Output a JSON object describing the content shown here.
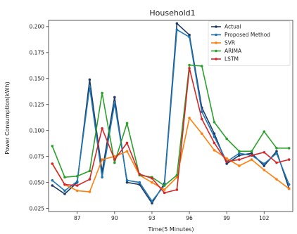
{
  "chart_data": {
    "type": "line",
    "title": "Household1",
    "xlabel": "Time(5 Minutes)",
    "ylabel": "Power Consumption(kWh)",
    "xlim": [
      84.7,
      104.3
    ],
    "ylim": [
      0.022,
      0.206
    ],
    "x_ticks": [
      87,
      90,
      93,
      96,
      99,
      102
    ],
    "y_ticks": [
      0.025,
      0.05,
      0.075,
      0.1,
      0.125,
      0.15,
      0.175,
      0.2
    ],
    "x_tick_labels": [
      "87",
      "90",
      "93",
      "96",
      "99",
      "102"
    ],
    "y_tick_labels": [
      "0.025",
      "0.050",
      "0.075",
      "0.100",
      "0.125",
      "0.150",
      "0.175",
      "0.200"
    ],
    "legend_position": "top-right",
    "x": [
      85,
      86,
      87,
      88,
      89,
      90,
      91,
      92,
      93,
      94,
      95,
      96,
      97,
      98,
      99,
      100,
      101,
      102,
      103,
      104
    ],
    "series": [
      {
        "name": "Actual",
        "color": "#1f3b63",
        "values": [
          0.047,
          0.039,
          0.05,
          0.149,
          0.06,
          0.132,
          0.05,
          0.048,
          0.03,
          0.049,
          0.203,
          0.192,
          0.122,
          0.097,
          0.068,
          0.076,
          0.078,
          0.066,
          0.08,
          0.044
        ]
      },
      {
        "name": "Proposed Method",
        "color": "#1f77b4",
        "values": [
          0.052,
          0.042,
          0.051,
          0.142,
          0.055,
          0.126,
          0.052,
          0.05,
          0.032,
          0.047,
          0.197,
          0.19,
          0.118,
          0.094,
          0.07,
          0.078,
          0.076,
          0.068,
          0.078,
          0.048
        ]
      },
      {
        "name": "SVR",
        "color": "#ff7f0e",
        "values": [
          0.068,
          0.048,
          0.042,
          0.041,
          0.072,
          0.075,
          0.08,
          0.057,
          0.05,
          0.043,
          0.055,
          0.112,
          0.097,
          0.081,
          0.073,
          0.066,
          0.072,
          0.062,
          0.053,
          0.044
        ]
      },
      {
        "name": "ARIMA",
        "color": "#2ca02c",
        "values": [
          0.085,
          0.055,
          0.056,
          0.061,
          0.136,
          0.069,
          0.107,
          0.057,
          0.055,
          0.047,
          0.057,
          0.163,
          0.162,
          0.108,
          0.092,
          0.08,
          0.08,
          0.099,
          0.083,
          0.083
        ]
      },
      {
        "name": "LSTM",
        "color": "#d62728",
        "values": [
          0.068,
          0.048,
          0.047,
          0.053,
          0.102,
          0.072,
          0.088,
          0.058,
          0.054,
          0.04,
          0.043,
          0.16,
          0.111,
          0.088,
          0.07,
          0.072,
          0.076,
          0.079,
          0.069,
          0.072
        ]
      }
    ]
  }
}
